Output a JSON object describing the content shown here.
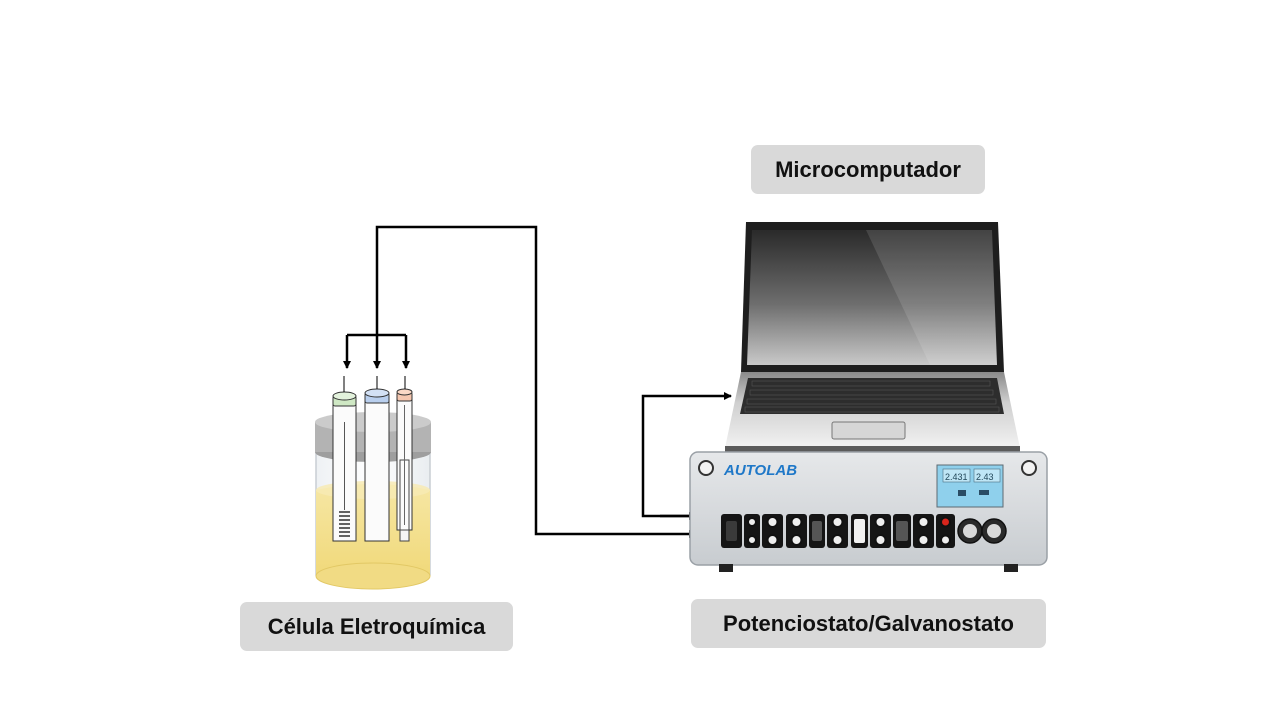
{
  "labels": {
    "computer": "Microcomputador",
    "cell": "Célula Eletroquímica",
    "potentiostat": "Potenciostato/Galvanostato"
  },
  "device": {
    "brand": "AUTOLAB",
    "display_left": "2.431",
    "display_right": "2.43"
  },
  "colors": {
    "label_bg": "#d9d9d9",
    "electrode_left_cap": "#cfe8c4",
    "electrode_mid_cap": "#b9cfee",
    "electrode_right_cap": "#f5c7b0",
    "solution": "#f3df8c",
    "brand": "#1f78c8",
    "display": "#8fd0ec",
    "connector_red": "#d9251c"
  },
  "icons": [
    "laptop-icon",
    "potentiostat-device-icon",
    "electrochemical-cell-icon",
    "arrow-icon"
  ]
}
